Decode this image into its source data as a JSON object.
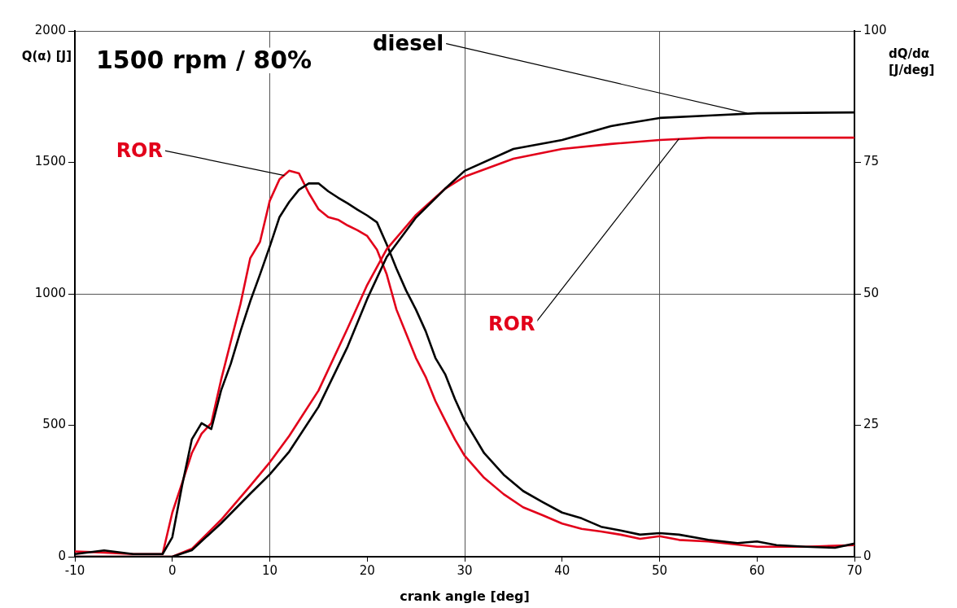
{
  "chart_data": {
    "type": "line",
    "xlabel": "crank angle [deg]",
    "ylabel": "Q(α) [J]",
    "y2label": "dQ/dα [J/deg]",
    "xlim": [
      -10,
      70
    ],
    "xticks": [
      -10,
      0,
      10,
      20,
      30,
      40,
      50,
      60,
      70
    ],
    "ylim": [
      0,
      2000
    ],
    "yticks": [
      0,
      500,
      1000,
      1500,
      2000
    ],
    "y2lim": [
      0,
      100
    ],
    "y2ticks": [
      0,
      25,
      50,
      75,
      100
    ],
    "grid": true,
    "line_style": "solid",
    "marker": "none",
    "annotations": [
      "1500 rpm / 80%",
      {
        "text": "diesel",
        "x": 59,
        "y": 1687
      },
      {
        "text": "ROR",
        "x": 11.5,
        "y": 1450
      },
      {
        "text": "ROR",
        "x": 52,
        "y": 1590
      }
    ],
    "series": [
      {
        "color": "#000000",
        "x": [
          -10,
          -5,
          0,
          2,
          5,
          8,
          10,
          12,
          15,
          18,
          20,
          22,
          25,
          28,
          30,
          35,
          40,
          45,
          50,
          55,
          60,
          70
        ],
        "values": [
          0,
          0,
          0,
          25,
          127,
          240,
          313,
          400,
          570,
          800,
          981,
          1140,
          1290,
          1400,
          1468,
          1551,
          1585,
          1638,
          1669,
          1678,
          1687,
          1690
        ]
      },
      {
        "color": "#e2001a",
        "x": [
          -10,
          -5,
          0,
          2,
          5,
          8,
          10,
          12,
          15,
          18,
          20,
          22,
          25,
          28,
          30,
          35,
          40,
          45,
          50,
          55,
          60,
          70
        ],
        "values": [
          0,
          0,
          0,
          30,
          140,
          270,
          359,
          460,
          632,
          870,
          1034,
          1170,
          1300,
          1400,
          1446,
          1514,
          1551,
          1570,
          1585,
          1594,
          1594,
          1594
        ]
      },
      {
        "color": "#000000",
        "axis": "y2",
        "x": [
          -10,
          -7,
          -4,
          -1,
          0,
          1,
          2,
          3,
          4,
          5,
          6,
          7,
          8,
          9,
          10,
          11,
          12,
          13,
          14,
          15,
          16,
          17,
          18,
          19,
          20,
          21,
          22,
          23,
          24,
          25,
          26,
          27,
          28,
          29,
          30,
          32,
          34,
          36,
          38,
          40,
          42,
          44,
          46,
          48,
          50,
          52,
          55,
          58,
          60,
          62,
          65,
          68,
          70
        ],
        "values": [
          0.5,
          1.2,
          0.5,
          0.5,
          3.7,
          13.5,
          22.3,
          25.4,
          24.3,
          31.6,
          36.7,
          42.9,
          48.6,
          53.7,
          59,
          64.6,
          67.5,
          69.8,
          71,
          71,
          69.5,
          68.3,
          67.2,
          66,
          64.9,
          63.6,
          59.4,
          54.8,
          50.6,
          47,
          42.9,
          37.8,
          34.7,
          30,
          25.9,
          19.7,
          15.6,
          12.5,
          10.4,
          8.4,
          7.3,
          5.7,
          5,
          4.2,
          4.5,
          4.2,
          3.2,
          2.6,
          2.9,
          2.2,
          1.9,
          1.7,
          2.5
        ]
      },
      {
        "color": "#e2001a",
        "axis": "y2",
        "x": [
          -10,
          -7,
          -4,
          -1,
          0,
          1,
          2,
          3,
          4,
          5,
          6,
          7,
          8,
          9,
          10,
          11,
          12,
          13,
          14,
          15,
          16,
          17,
          18,
          19,
          20,
          21,
          22,
          23,
          24,
          25,
          26,
          27,
          28,
          29,
          30,
          32,
          34,
          36,
          38,
          40,
          42,
          44,
          46,
          48,
          50,
          52,
          55,
          60,
          65,
          70
        ],
        "values": [
          1,
          0.8,
          0.5,
          0.5,
          8.4,
          14,
          19.7,
          23.4,
          25.4,
          33.6,
          40.9,
          48.1,
          56.8,
          59.9,
          67.7,
          71.8,
          73.4,
          72.9,
          69.2,
          66.1,
          64.6,
          64.1,
          63,
          62.1,
          61,
          58.4,
          53.7,
          47,
          42.4,
          37.8,
          34.2,
          29.6,
          25.9,
          22.3,
          19.2,
          15,
          11.9,
          9.4,
          7.9,
          6.3,
          5.3,
          4.8,
          4.2,
          3.4,
          3.9,
          3.2,
          2.9,
          1.9,
          1.9,
          2.2
        ]
      }
    ]
  }
}
